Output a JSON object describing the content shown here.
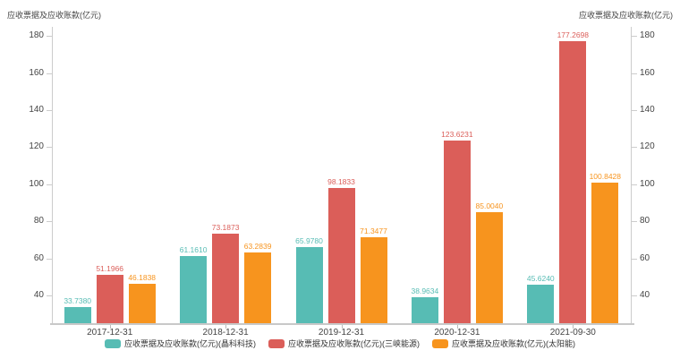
{
  "titles": {
    "left": "应收票据及应收账款(亿元)",
    "right": "应收票据及应收账款(亿元)"
  },
  "chart_data": {
    "type": "bar",
    "title": "应收票据及应收账款(亿元)",
    "categories": [
      "2017-12-31",
      "2018-12-31",
      "2019-12-31",
      "2020-12-31",
      "2021-09-30"
    ],
    "series": [
      {
        "name": "应收票据及应收账款(亿元)(晶科科技)",
        "color": "#57bcb4",
        "values": [
          33.738,
          61.161,
          65.978,
          38.9634,
          45.624
        ],
        "labels": [
          "33.7380",
          "61.1610",
          "65.9780",
          "38.9634",
          "45.6240"
        ]
      },
      {
        "name": "应收票据及应收账款(亿元)(三峡能源)",
        "color": "#db5e59",
        "values": [
          51.1966,
          73.1873,
          98.1833,
          123.6231,
          177.2698
        ],
        "labels": [
          "51.1966",
          "73.1873",
          "98.1833",
          "123.6231",
          "177.2698"
        ]
      },
      {
        "name": "应收票据及应收账款(亿元)(太阳能)",
        "color": "#f7941e",
        "values": [
          46.1838,
          63.2839,
          71.3477,
          85.004,
          100.8428
        ],
        "labels": [
          "46.1838",
          "63.2839",
          "71.3477",
          "85.0040",
          "100.8428"
        ]
      }
    ],
    "ylabel_left": "应收票据及应收账款(亿元)",
    "ylabel_right": "应收票据及应收账款(亿元)",
    "xlabel": "",
    "ylim": [
      25,
      185
    ],
    "yticks": [
      40,
      60,
      80,
      100,
      120,
      140,
      160,
      180
    ],
    "grid": false,
    "legend_position": "bottom"
  }
}
